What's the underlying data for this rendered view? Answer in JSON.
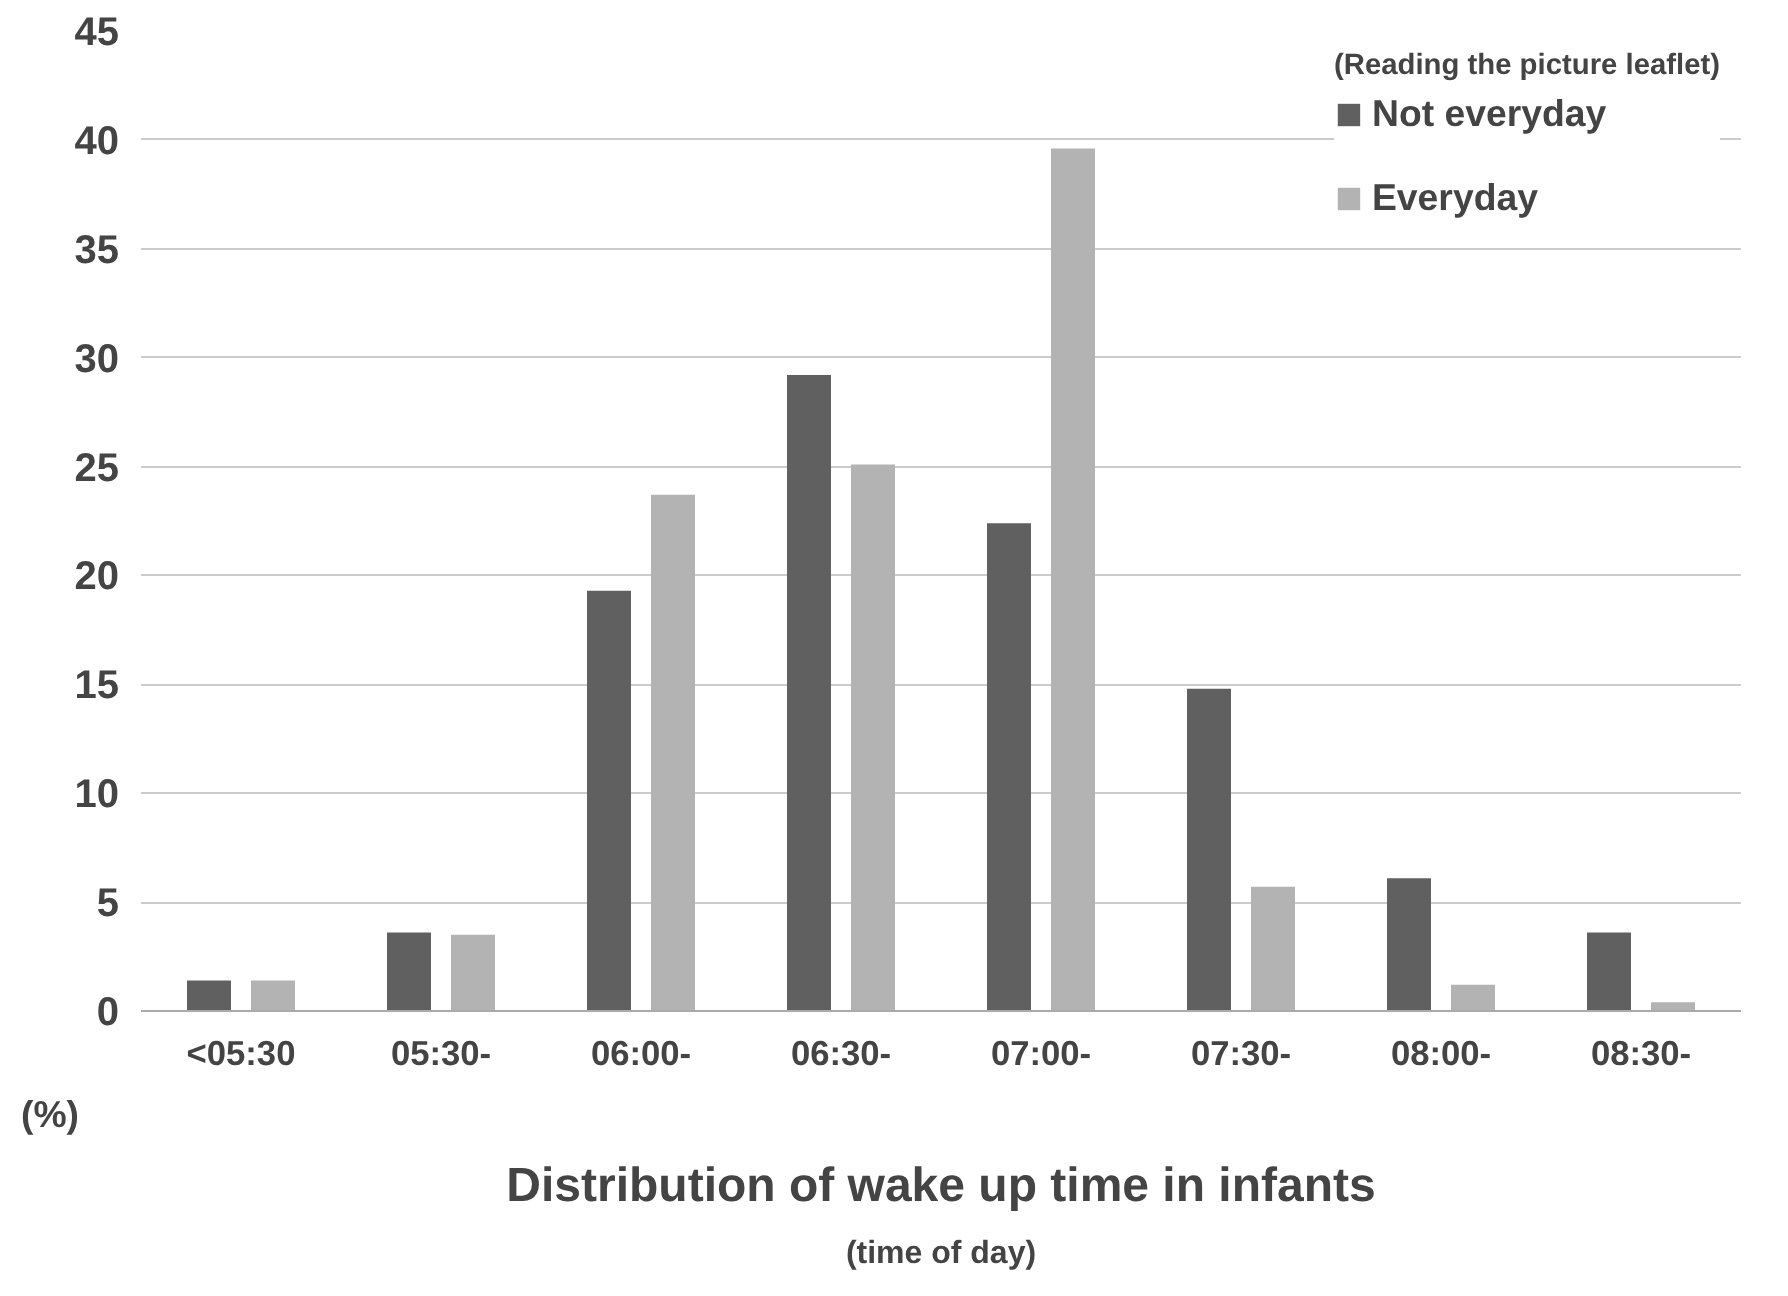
{
  "chart_data": {
    "type": "bar",
    "ylabel": "(%)",
    "xlabel": "Distribution of wake up time in infants",
    "annotations": [
      "(time of day)"
    ],
    "legend_title": "(Reading the picture leaflet)",
    "categories": [
      "<05:30",
      "05:30-",
      "06:00-",
      "06:30-",
      "07:00-",
      "07:30-",
      "08:00-",
      "08:30-"
    ],
    "series": [
      {
        "name": "Not everyday",
        "color": "#606060",
        "values": [
          1.4,
          3.6,
          19.3,
          29.2,
          22.4,
          14.8,
          6.1,
          3.6
        ]
      },
      {
        "name": "Everyday",
        "color": "#b3b3b3",
        "values": [
          1.4,
          3.5,
          23.7,
          25.1,
          39.6,
          5.7,
          1.2,
          0.4
        ]
      }
    ],
    "ylim": [
      0,
      45
    ],
    "yticks": [
      0,
      5,
      10,
      15,
      20,
      25,
      30,
      35,
      40,
      45
    ],
    "grid": "y",
    "legend": "top right"
  }
}
